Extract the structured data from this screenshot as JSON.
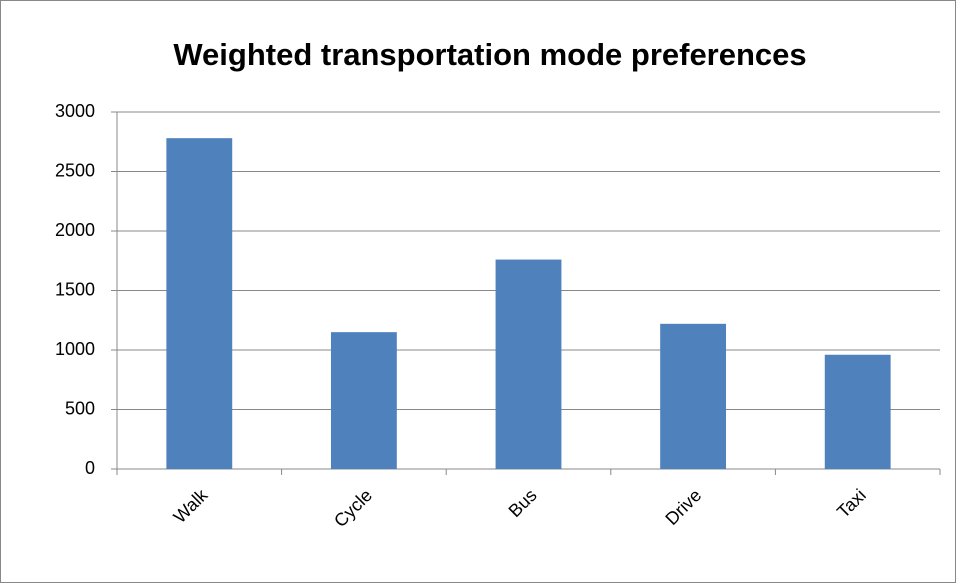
{
  "chart_data": {
    "type": "bar",
    "title": "Weighted transportation mode preferences",
    "categories": [
      "Walk",
      "Cycle",
      "Bus",
      "Drive",
      "Taxi"
    ],
    "values": [
      2780,
      1150,
      1760,
      1220,
      960
    ],
    "color": "#4f81bd",
    "ylim": [
      0,
      3000
    ],
    "yticks": [
      0,
      500,
      1000,
      1500,
      2000,
      2500,
      3000
    ],
    "grid": true
  }
}
